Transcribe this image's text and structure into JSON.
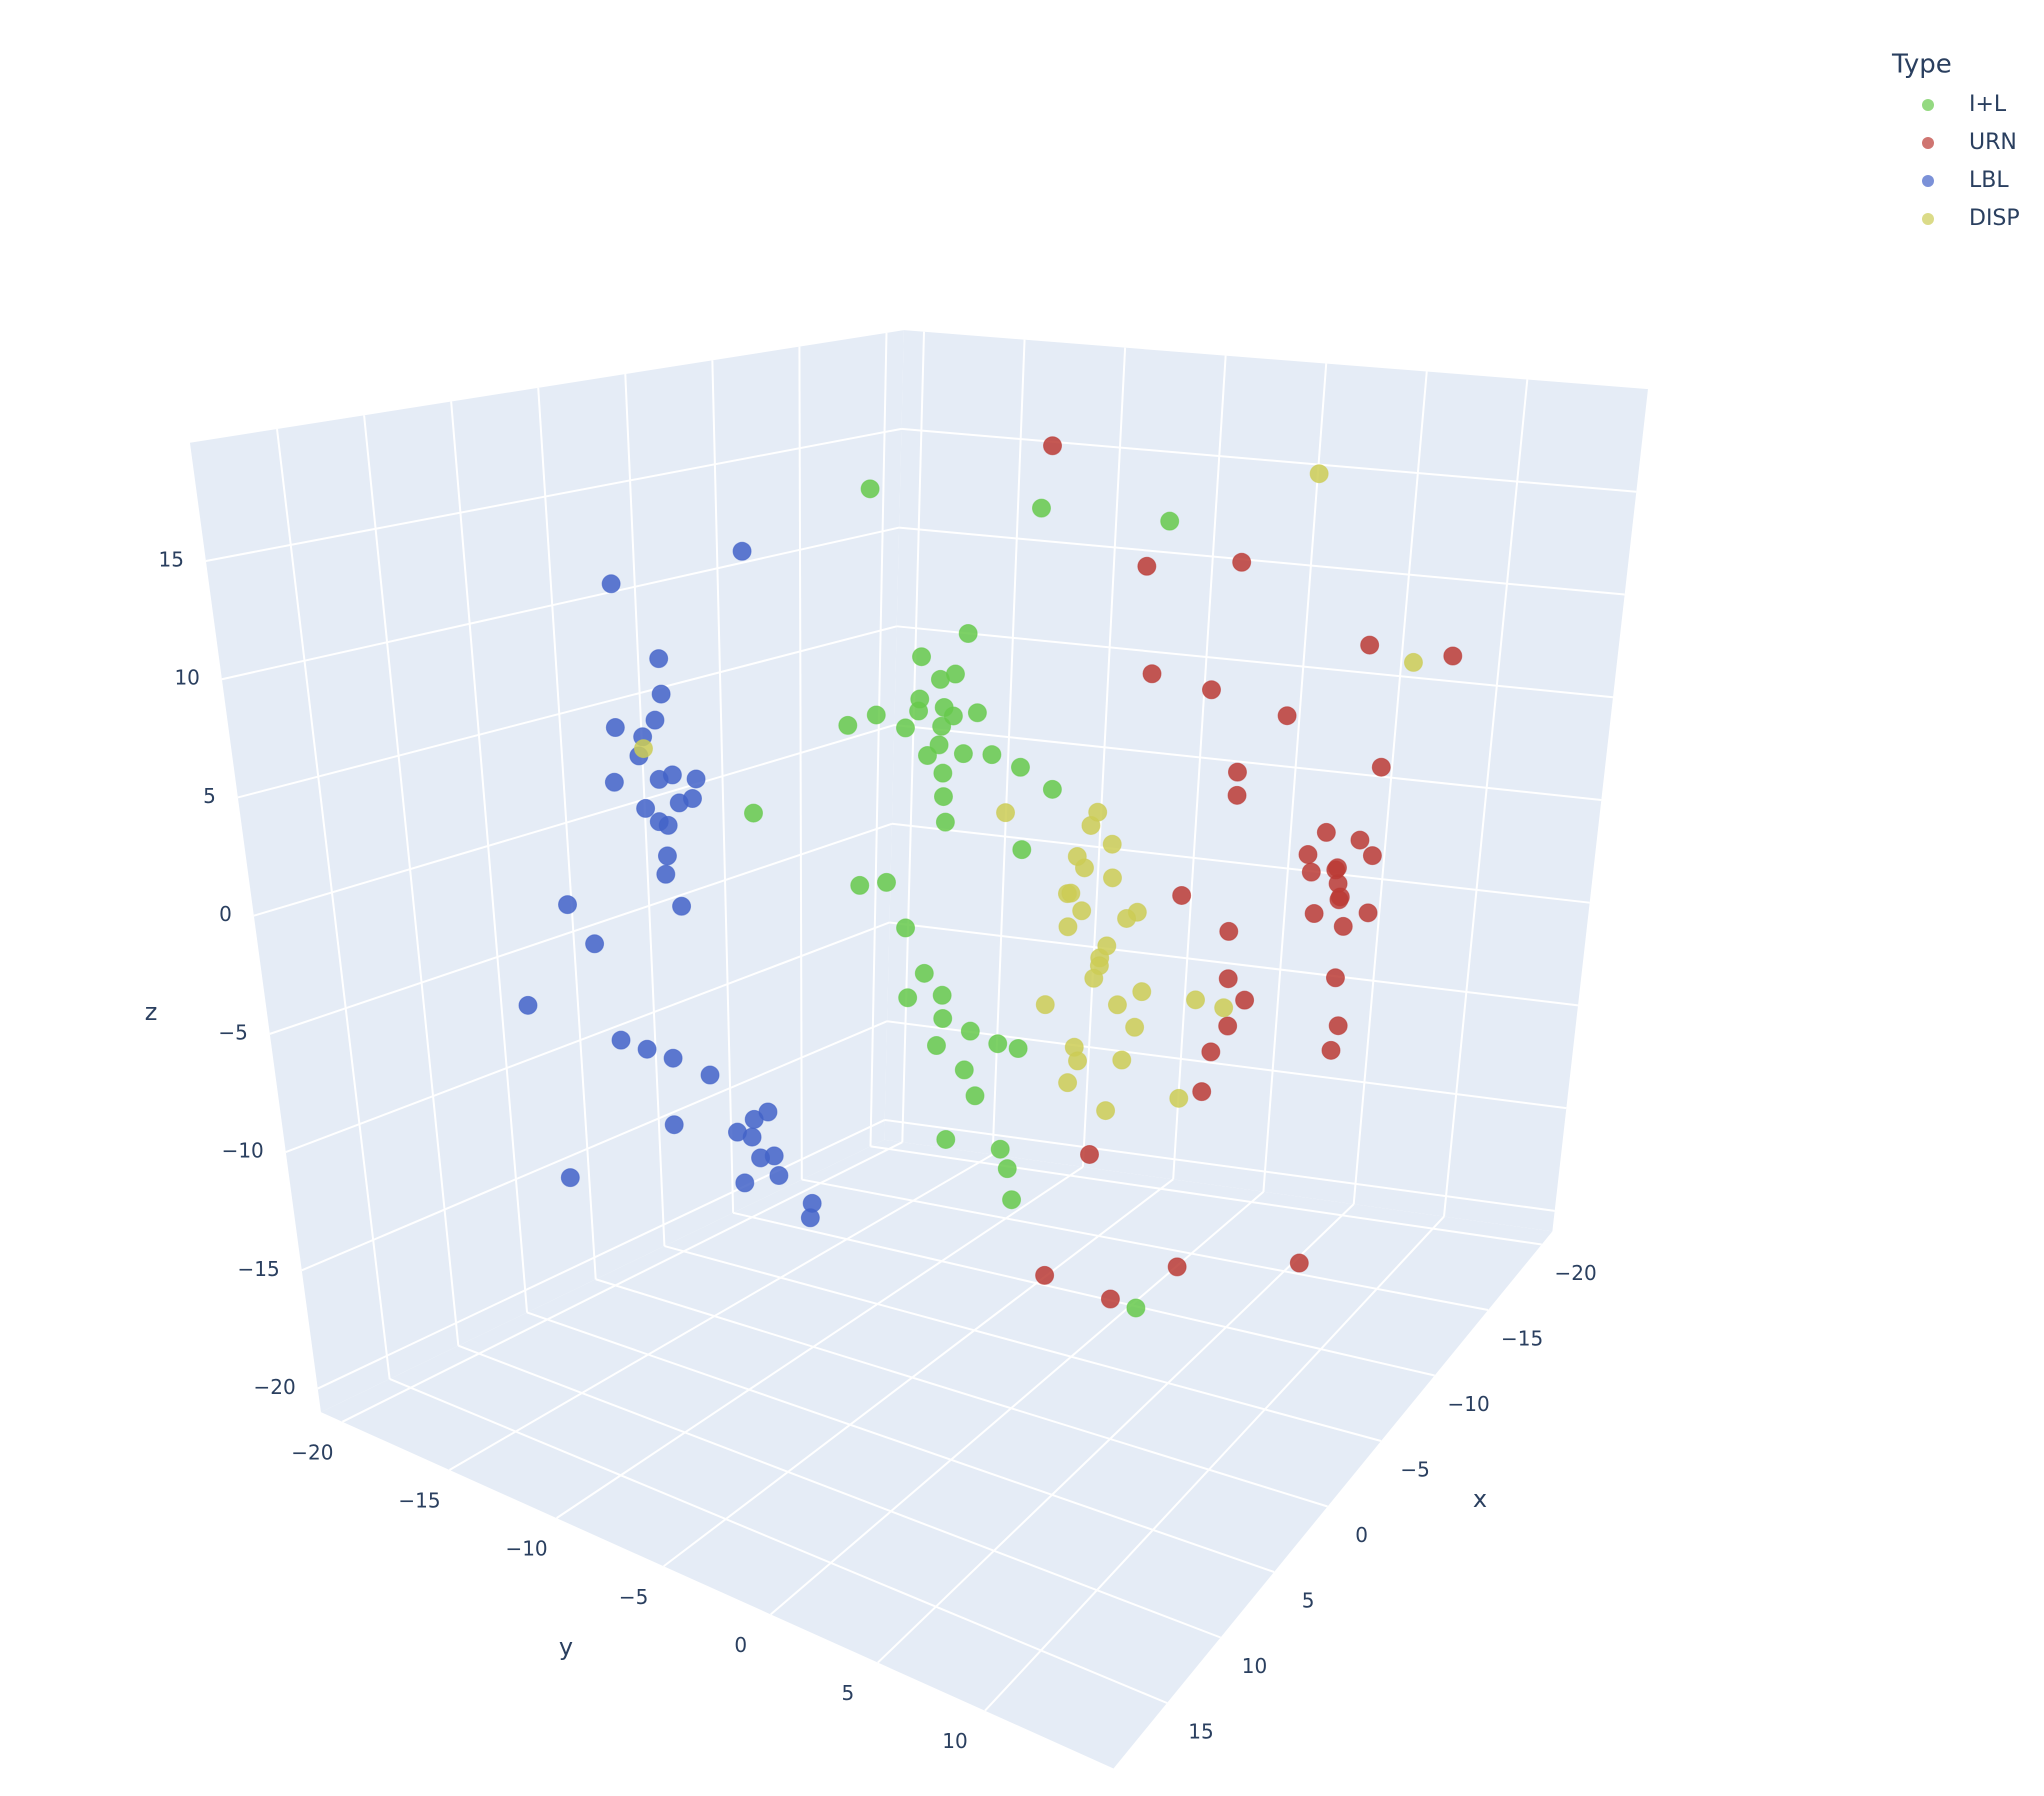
{
  "chart_data": {
    "type": "scatter3d",
    "legend_title": "Type",
    "xlabel": "x",
    "ylabel": "y",
    "zlabel": "z",
    "xlim": [
      -21,
      20
    ],
    "ylim": [
      -21,
      16
    ],
    "zlim": [
      -21,
      20
    ],
    "xticks": [
      {
        "value": -20,
        "label": "−20"
      },
      {
        "value": -15,
        "label": "−15"
      },
      {
        "value": -10,
        "label": "−10"
      },
      {
        "value": -5,
        "label": "−5"
      },
      0,
      5,
      10,
      15
    ],
    "yticks": [
      {
        "value": -20,
        "label": "−20"
      },
      {
        "value": -15,
        "label": "−15"
      },
      {
        "value": -10,
        "label": "−10"
      },
      {
        "value": -5,
        "label": "−5"
      },
      0,
      5,
      10
    ],
    "zticks": [
      {
        "value": -20,
        "label": "−20"
      },
      {
        "value": -15,
        "label": "−15"
      },
      {
        "value": -10,
        "label": "−10"
      },
      {
        "value": -5,
        "label": "−5"
      },
      0,
      5,
      10,
      15
    ],
    "grid": true,
    "legend_position": "top-right",
    "series": [
      {
        "name": "I+L",
        "color": "#66c94b",
        "x": [
          1,
          1.5,
          0.5,
          1,
          2,
          0,
          1,
          1.5,
          0.5,
          2,
          1,
          0,
          1,
          2.5,
          -0.5,
          1,
          1.2,
          0,
          -0.3,
          0.5,
          2.5,
          3,
          -2.8,
          -3.4,
          -4,
          5.7,
          3.9,
          0,
          0,
          0.5,
          1,
          1.5,
          0,
          -0.5,
          -1,
          -1,
          0,
          0,
          0.5,
          1,
          2,
          2,
          1.5,
          3,
          -1.4
        ],
        "y": [
          -2,
          -1.5,
          -2.5,
          -2,
          -3,
          -1,
          -2,
          -2.5,
          -1,
          -2,
          -3,
          -2,
          -1,
          -2,
          -2.5,
          -2,
          -1.8,
          1,
          2.3,
          0,
          -4,
          -5,
          -7.9,
          -0.3,
          5.3,
          -7.7,
          -4.1,
          1,
          -3,
          -3.5,
          -4,
          -4.5,
          -3,
          -2,
          -1,
          0,
          -2,
          -1.5,
          -3,
          -4,
          1,
          1.5,
          1,
          -1,
          5.5
        ],
        "z": [
          8,
          9,
          7,
          10,
          8,
          8.5,
          6,
          11,
          12,
          7,
          9,
          10,
          7,
          9,
          8,
          5,
          4,
          6.5,
          5.7,
          7,
          8.5,
          8,
          16.7,
          16.7,
          16.7,
          4.4,
          1.6,
          3,
          -5,
          -3,
          -1,
          1,
          -4,
          -5.5,
          -6,
          -6,
          -7,
          -8,
          -6,
          -4,
          -9,
          -11,
          -10,
          -8.7,
          -16
        ]
      },
      {
        "name": "URN",
        "color": "#bb3b35",
        "x": [
          -5,
          -4,
          -6,
          -5,
          -4.5,
          -5.5,
          -6,
          -4,
          -5,
          -5,
          -4.8,
          -3.5,
          -6.5,
          -5,
          -5,
          -4,
          -3,
          -3.5,
          -2.5,
          -3,
          -6,
          -8.6,
          -6.3,
          -8.6,
          -17.3,
          -4.6,
          -6,
          -7,
          -5,
          -5,
          -8,
          -1,
          -3,
          -1,
          1.1,
          0,
          0.2,
          -3.5,
          -6
        ],
        "y": [
          13,
          13.5,
          12.5,
          14,
          12,
          13,
          14,
          12.5,
          13,
          13.2,
          13,
          14,
          12,
          11.5,
          14.5,
          13,
          9,
          9.5,
          8.5,
          9,
          -1.7,
          5.5,
          2.6,
          11.8,
          10.1,
          4.1,
          6,
          9,
          8,
          8,
          13,
          8,
          9,
          9,
          4.8,
          1.8,
          5.2,
          6.3,
          11
        ],
        "z": [
          2,
          3,
          1,
          4,
          2.5,
          0,
          3,
          1,
          -2,
          -4,
          -5,
          2,
          2,
          3,
          1,
          4.5,
          -4,
          -3,
          -5,
          -2,
          18.8,
          13.9,
          13.9,
          11,
          7.7,
          9.8,
          9,
          8,
          6,
          5,
          6,
          2,
          0,
          -6,
          -8.7,
          -14.9,
          -15,
          -15,
          -15
        ]
      },
      {
        "name": "LBL",
        "color": "#4363c8",
        "x": [
          8.5,
          9,
          8,
          9,
          8,
          9.5,
          8.5,
          8,
          9,
          7.5,
          10,
          8.5,
          9,
          8,
          9.5,
          8.5,
          0.1,
          8.2,
          8,
          8.2,
          8,
          14.9,
          16,
          9,
          10.9,
          10.6,
          10.3,
          10,
          11,
          11.5,
          10.5,
          11,
          12,
          11,
          11.5,
          10.5,
          7,
          6.3,
          12
        ],
        "y": [
          -10,
          -10.5,
          -9.5,
          -9,
          -11,
          -10,
          -10,
          -10.5,
          -9.5,
          -9,
          -11,
          -8.5,
          -11.5,
          -10,
          -9,
          -10,
          -11.8,
          -11.8,
          -10,
          -15,
          -14,
          -12.4,
          -10.4,
          -9,
          -11,
          -10,
          -9,
          -7.5,
          -5,
          -4.5,
          -5,
          -4,
          -5,
          -5.5,
          -3.5,
          -4.5,
          -5,
          -5.6,
          -8
        ],
        "z": [
          6,
          7,
          5,
          6.5,
          7.5,
          5,
          8.5,
          4,
          3,
          6,
          6,
          5.5,
          8,
          9.5,
          4.5,
          2,
          13.9,
          13.9,
          11,
          -0.5,
          -2,
          -2.5,
          -8.7,
          1,
          -4.6,
          -4.8,
          -5,
          -5.4,
          -7,
          -6,
          -8,
          -7.5,
          -6.5,
          -9,
          -8,
          -6,
          -11,
          -12,
          -7
        ]
      },
      {
        "name": "DISP",
        "color": "#cccc55",
        "x": [
          2,
          2.5,
          1.5,
          3,
          1,
          2,
          3,
          2,
          1,
          3,
          0.5,
          4,
          2,
          1.5,
          2.5,
          3.5,
          1,
          2,
          0,
          4,
          3,
          2,
          1,
          2.5,
          3,
          -1.4,
          -0.5,
          0,
          -9.4,
          -10.5,
          8,
          4
        ],
        "y": [
          6,
          5.5,
          6.5,
          6,
          5,
          7,
          5,
          6,
          6,
          7,
          5,
          6,
          4.5,
          7.5,
          6.5,
          5.5,
          7,
          5,
          6,
          7,
          4,
          8,
          4,
          7,
          5.5,
          9.8,
          9,
          8.5,
          8.5,
          12.7,
          -11,
          3
        ],
        "z": [
          0,
          2,
          -2,
          4,
          5,
          -4,
          -5,
          6,
          3,
          1,
          -1,
          -3,
          1,
          2,
          -6,
          3,
          -3,
          4,
          1,
          0,
          -2,
          -1,
          2,
          5,
          -4,
          -2.5,
          -2,
          -6,
          18,
          9.8,
          7,
          6
        ]
      }
    ]
  }
}
